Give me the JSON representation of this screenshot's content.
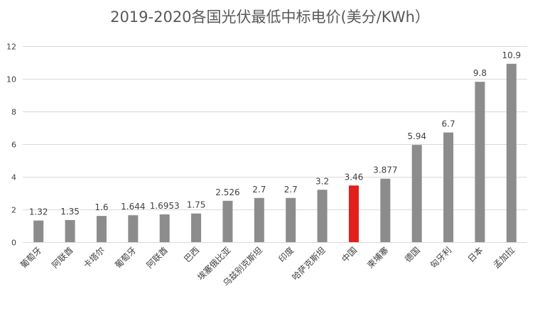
{
  "chart_data": {
    "type": "bar",
    "title": "2019-2020各国光伏最低中标电价(美分/KWh）",
    "xlabel": "",
    "ylabel": "",
    "ylim": [
      0,
      12
    ],
    "yticks": [
      0,
      2,
      4,
      6,
      8,
      10,
      12
    ],
    "grid": true,
    "legend": "none",
    "categories": [
      "葡萄牙",
      "阿联酋",
      "卡塔尔",
      "葡萄牙",
      "阿联酋",
      "巴西",
      "埃塞俄比亚",
      "乌兹别克斯坦",
      "印度",
      "哈萨克斯坦",
      "中国",
      "柬埔寨",
      "德国",
      "匈牙利",
      "日本",
      "孟加拉"
    ],
    "value_labels": [
      "1.32",
      "1.35",
      "1.6",
      "1.644",
      "1.6953",
      "1.75",
      "2.526",
      "2.7",
      "2.7",
      "3.2",
      "3.46",
      "3.877",
      "5.94",
      "6.7",
      "9.8",
      "10.9"
    ],
    "values": [
      1.32,
      1.35,
      1.6,
      1.644,
      1.6953,
      1.75,
      2.526,
      2.7,
      2.7,
      3.2,
      3.46,
      3.877,
      5.94,
      6.7,
      9.8,
      10.9
    ],
    "colors": {
      "default": "#8c8c8c",
      "highlight": "#e0201b",
      "highlight_category": "中国",
      "grid": "#d9d9d9",
      "text": "#404040"
    }
  }
}
